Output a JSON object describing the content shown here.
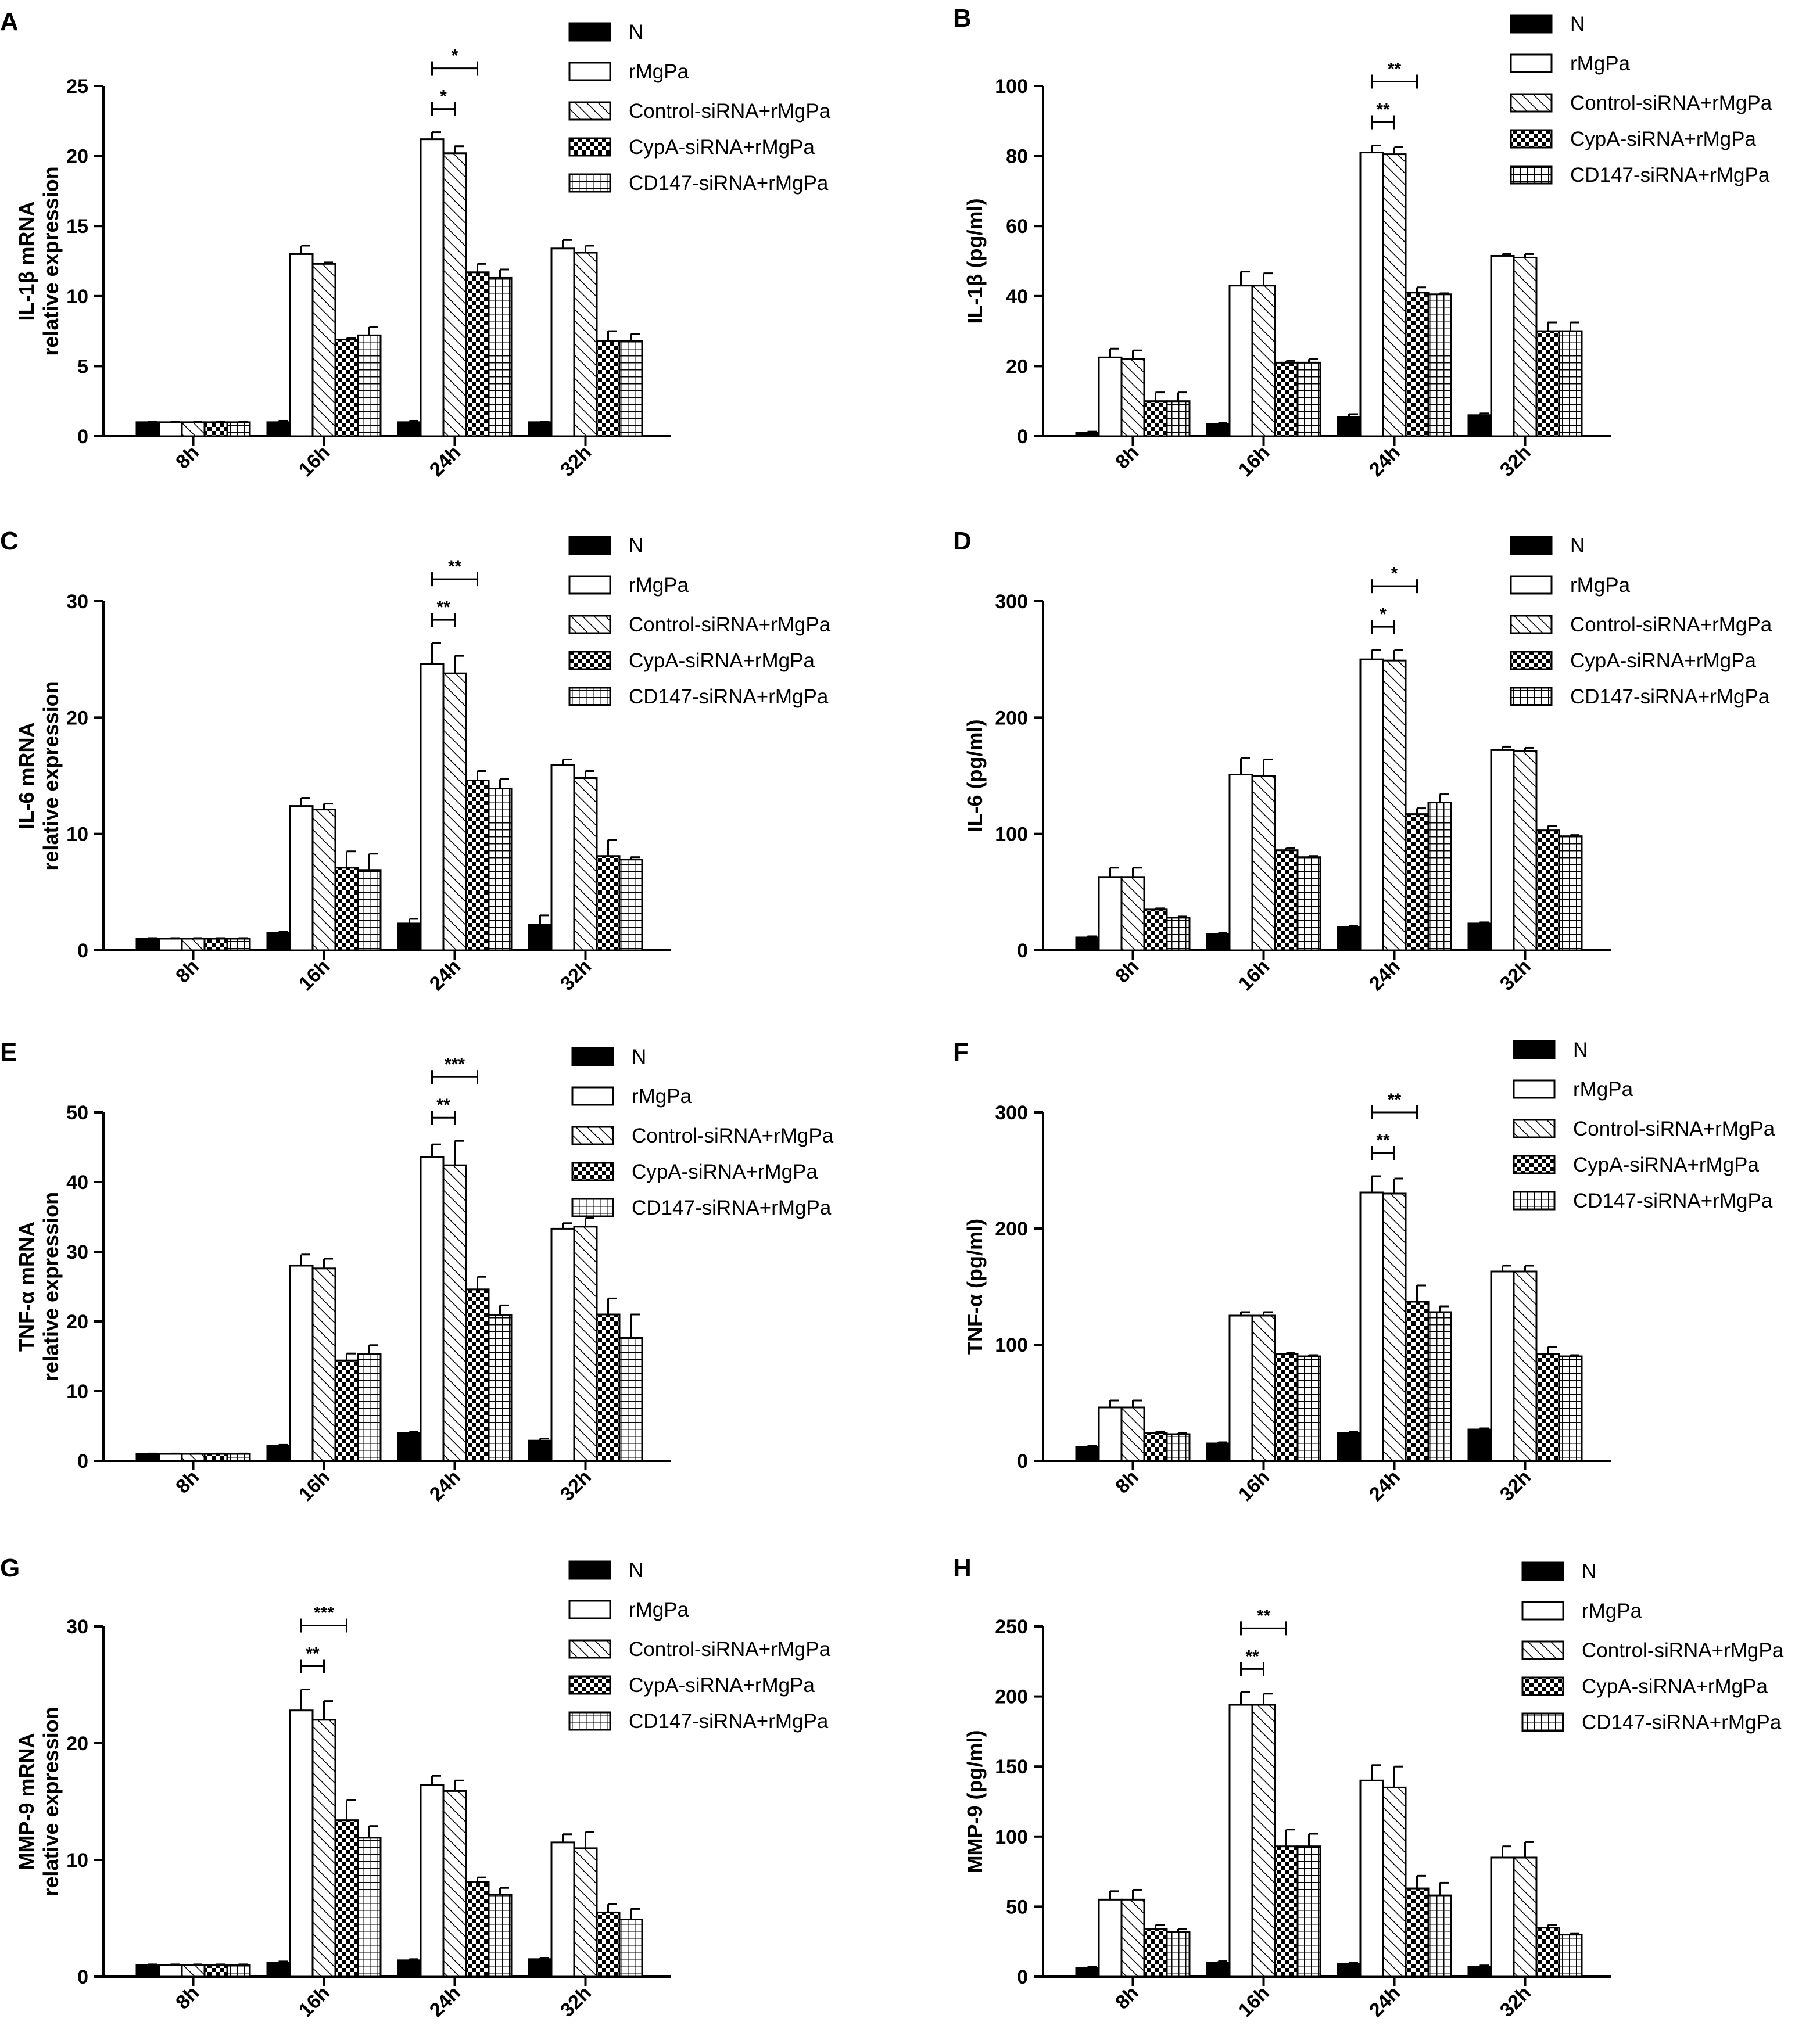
{
  "legend_labels": [
    "N",
    "rMgPa",
    "Control-siRNA+rMgPa",
    "CypA-siRNA+rMgPa",
    "CD147-siRNA+rMgPa"
  ],
  "chart_data": [
    {
      "panel": "A",
      "type": "bar",
      "categories": [
        "8h",
        "16h",
        "24h",
        "32h"
      ],
      "ylabel": [
        "IL-1β mRNA",
        "relative expression"
      ],
      "ylim": [
        0,
        25
      ],
      "yticks": [
        0,
        5,
        10,
        15,
        20,
        25
      ],
      "series": [
        {
          "name": "N",
          "values": [
            1.0,
            1.0,
            1.0,
            1.0
          ],
          "errors": [
            0.05,
            0.1,
            0.1,
            0.05
          ]
        },
        {
          "name": "rMgPa",
          "values": [
            1.0,
            13.0,
            21.2,
            13.4
          ],
          "errors": [
            0.05,
            0.6,
            0.5,
            0.6
          ]
        },
        {
          "name": "Control-siRNA+rMgPa",
          "values": [
            1.0,
            12.3,
            20.2,
            13.1
          ],
          "errors": [
            0.05,
            0.1,
            0.5,
            0.5
          ]
        },
        {
          "name": "CypA-siRNA+rMgPa",
          "values": [
            1.0,
            6.9,
            11.7,
            6.8
          ],
          "errors": [
            0.05,
            0.1,
            0.6,
            0.7
          ]
        },
        {
          "name": "CD147-siRNA+rMgPa",
          "values": [
            1.0,
            7.2,
            11.3,
            6.8
          ],
          "errors": [
            0.05,
            0.6,
            0.6,
            0.5
          ]
        }
      ],
      "significance": [
        {
          "group": 2,
          "from": 1,
          "to": 2,
          "label": "*"
        },
        {
          "group": 2,
          "from": 1,
          "to": 3,
          "label": "*"
        }
      ]
    },
    {
      "panel": "B",
      "type": "bar",
      "categories": [
        "8h",
        "16h",
        "24h",
        "32h"
      ],
      "ylabel": [
        "IL-1β (pg/ml)"
      ],
      "ylim": [
        0,
        100
      ],
      "yticks": [
        0,
        20,
        40,
        60,
        80,
        100
      ],
      "series": [
        {
          "name": "N",
          "values": [
            1.0,
            3.5,
            5.5,
            6.0
          ],
          "errors": [
            0.3,
            0.3,
            0.8,
            0.5
          ]
        },
        {
          "name": "rMgPa",
          "values": [
            22.5,
            43.0,
            81.0,
            51.5
          ],
          "errors": [
            2.5,
            4.0,
            2.0,
            0.5
          ]
        },
        {
          "name": "Control-siRNA+rMgPa",
          "values": [
            22.0,
            43.0,
            80.5,
            51.0
          ],
          "errors": [
            2.5,
            3.5,
            2.0,
            1.0
          ]
        },
        {
          "name": "CypA-siRNA+rMgPa",
          "values": [
            10.0,
            21.0,
            41.0,
            30.0
          ],
          "errors": [
            2.5,
            0.5,
            1.5,
            2.5
          ]
        },
        {
          "name": "CD147-siRNA+rMgPa",
          "values": [
            10.0,
            21.0,
            40.5,
            30.0
          ],
          "errors": [
            2.5,
            1.0,
            0.3,
            2.5
          ]
        }
      ],
      "significance": [
        {
          "group": 2,
          "from": 1,
          "to": 2,
          "label": "**"
        },
        {
          "group": 2,
          "from": 1,
          "to": 3,
          "label": "**"
        }
      ]
    },
    {
      "panel": "C",
      "type": "bar",
      "categories": [
        "8h",
        "16h",
        "24h",
        "32h"
      ],
      "ylabel": [
        "IL-6 mRNA",
        "relative expression"
      ],
      "ylim": [
        0,
        30
      ],
      "yticks": [
        0,
        10,
        20,
        30
      ],
      "series": [
        {
          "name": "N",
          "values": [
            1.0,
            1.5,
            2.3,
            2.2
          ],
          "errors": [
            0.05,
            0.1,
            0.4,
            0.8
          ]
        },
        {
          "name": "rMgPa",
          "values": [
            1.0,
            12.4,
            24.6,
            15.9
          ],
          "errors": [
            0.05,
            0.7,
            1.8,
            0.5
          ]
        },
        {
          "name": "Control-siRNA+rMgPa",
          "values": [
            1.0,
            12.1,
            23.8,
            14.8
          ],
          "errors": [
            0.05,
            0.5,
            1.5,
            0.6
          ]
        },
        {
          "name": "CypA-siRNA+rMgPa",
          "values": [
            1.0,
            7.1,
            14.6,
            8.1
          ],
          "errors": [
            0.05,
            1.4,
            0.8,
            1.4
          ]
        },
        {
          "name": "CD147-siRNA+rMgPa",
          "values": [
            1.0,
            6.9,
            13.9,
            7.8
          ],
          "errors": [
            0.05,
            1.4,
            0.8,
            0.2
          ]
        }
      ],
      "significance": [
        {
          "group": 2,
          "from": 1,
          "to": 2,
          "label": "**"
        },
        {
          "group": 2,
          "from": 1,
          "to": 3,
          "label": "**"
        }
      ]
    },
    {
      "panel": "D",
      "type": "bar",
      "categories": [
        "8h",
        "16h",
        "24h",
        "32h"
      ],
      "ylabel": [
        "IL-6 (pg/ml)"
      ],
      "ylim": [
        0,
        300
      ],
      "yticks": [
        0,
        100,
        200,
        300
      ],
      "series": [
        {
          "name": "N",
          "values": [
            11,
            14,
            20,
            23
          ],
          "errors": [
            1,
            1,
            1,
            1
          ]
        },
        {
          "name": "rMgPa",
          "values": [
            63,
            151,
            250,
            172
          ],
          "errors": [
            8,
            14,
            8,
            3
          ]
        },
        {
          "name": "Control-siRNA+rMgPa",
          "values": [
            63,
            150,
            249,
            171
          ],
          "errors": [
            8,
            14,
            9,
            3
          ]
        },
        {
          "name": "CypA-siRNA+rMgPa",
          "values": [
            35,
            86,
            117,
            103
          ],
          "errors": [
            1,
            2,
            5,
            4
          ]
        },
        {
          "name": "CD147-siRNA+rMgPa",
          "values": [
            28,
            80,
            127,
            98
          ],
          "errors": [
            1,
            1,
            7,
            1
          ]
        }
      ],
      "significance": [
        {
          "group": 2,
          "from": 1,
          "to": 2,
          "label": "*"
        },
        {
          "group": 2,
          "from": 1,
          "to": 3,
          "label": "*"
        }
      ]
    },
    {
      "panel": "E",
      "type": "bar",
      "categories": [
        "8h",
        "16h",
        "24h",
        "32h"
      ],
      "ylabel": [
        "TNF-α mRNA",
        "relative expression"
      ],
      "ylim": [
        0,
        50
      ],
      "yticks": [
        0,
        10,
        20,
        30,
        40,
        50
      ],
      "series": [
        {
          "name": "N",
          "values": [
            1.0,
            2.2,
            4.0,
            2.9
          ],
          "errors": [
            0.05,
            0.1,
            0.2,
            0.3
          ]
        },
        {
          "name": "rMgPa",
          "values": [
            1.0,
            28.0,
            43.6,
            33.3
          ],
          "errors": [
            0.05,
            1.6,
            1.8,
            0.8
          ]
        },
        {
          "name": "Control-siRNA+rMgPa",
          "values": [
            1.0,
            27.6,
            42.4,
            33.6
          ],
          "errors": [
            0.05,
            1.4,
            3.5,
            1.2
          ]
        },
        {
          "name": "CypA-siRNA+rMgPa",
          "values": [
            1.0,
            14.4,
            24.6,
            21.0
          ],
          "errors": [
            0.05,
            1.0,
            1.8,
            2.3
          ]
        },
        {
          "name": "CD147-siRNA+rMgPa",
          "values": [
            1.0,
            15.3,
            20.9,
            17.7
          ],
          "errors": [
            0.05,
            1.3,
            1.4,
            3.3
          ]
        }
      ],
      "significance": [
        {
          "group": 2,
          "from": 1,
          "to": 2,
          "label": "**"
        },
        {
          "group": 2,
          "from": 1,
          "to": 3,
          "label": "***"
        }
      ]
    },
    {
      "panel": "F",
      "type": "bar",
      "categories": [
        "8h",
        "16h",
        "24h",
        "32h"
      ],
      "ylabel": [
        "TNF-α (pg/ml)"
      ],
      "ylim": [
        0,
        300
      ],
      "yticks": [
        0,
        100,
        200,
        300
      ],
      "series": [
        {
          "name": "N",
          "values": [
            12,
            15,
            24,
            27
          ],
          "errors": [
            1,
            1,
            1,
            1
          ]
        },
        {
          "name": "rMgPa",
          "values": [
            46,
            125,
            231,
            163
          ],
          "errors": [
            6,
            3,
            14,
            5
          ]
        },
        {
          "name": "Control-siRNA+rMgPa",
          "values": [
            46,
            125,
            230,
            163
          ],
          "errors": [
            6,
            3,
            13,
            5
          ]
        },
        {
          "name": "CypA-siRNA+rMgPa",
          "values": [
            24,
            92,
            137,
            92
          ],
          "errors": [
            1,
            1,
            14,
            6
          ]
        },
        {
          "name": "CD147-siRNA+rMgPa",
          "values": [
            23,
            90,
            128,
            90
          ],
          "errors": [
            1,
            1,
            5,
            1
          ]
        }
      ],
      "significance": [
        {
          "group": 2,
          "from": 1,
          "to": 2,
          "label": "**"
        },
        {
          "group": 2,
          "from": 1,
          "to": 3,
          "label": "**"
        }
      ]
    },
    {
      "panel": "G",
      "type": "bar",
      "categories": [
        "8h",
        "16h",
        "24h",
        "32h"
      ],
      "ylabel": [
        "MMP-9 mRNA",
        "relative expression"
      ],
      "ylim": [
        0,
        30
      ],
      "yticks": [
        0,
        10,
        20,
        30
      ],
      "series": [
        {
          "name": "N",
          "values": [
            1.0,
            1.2,
            1.4,
            1.5
          ],
          "errors": [
            0.05,
            0.1,
            0.1,
            0.1
          ]
        },
        {
          "name": "rMgPa",
          "values": [
            1.0,
            22.8,
            16.4,
            11.5
          ],
          "errors": [
            0.05,
            1.8,
            0.8,
            0.7
          ]
        },
        {
          "name": "Control-siRNA+rMgPa",
          "values": [
            1.0,
            22.0,
            15.9,
            11.0
          ],
          "errors": [
            0.05,
            1.6,
            0.9,
            1.4
          ]
        },
        {
          "name": "CypA-siRNA+rMgPa",
          "values": [
            1.0,
            13.4,
            8.1,
            5.5
          ],
          "errors": [
            0.05,
            1.7,
            0.4,
            0.7
          ]
        },
        {
          "name": "CD147-siRNA+rMgPa",
          "values": [
            1.0,
            11.9,
            7.0,
            4.9
          ],
          "errors": [
            0.05,
            1.0,
            0.6,
            0.9
          ]
        }
      ],
      "significance": [
        {
          "group": 1,
          "from": 1,
          "to": 2,
          "label": "**"
        },
        {
          "group": 1,
          "from": 1,
          "to": 3,
          "label": "***"
        }
      ]
    },
    {
      "panel": "H",
      "type": "bar",
      "categories": [
        "8h",
        "16h",
        "24h",
        "32h"
      ],
      "ylabel": [
        "MMP-9 (pg/ml)"
      ],
      "ylim": [
        0,
        250
      ],
      "yticks": [
        0,
        50,
        100,
        150,
        200,
        250
      ],
      "series": [
        {
          "name": "N",
          "values": [
            6,
            10,
            9,
            7
          ],
          "errors": [
            1,
            1,
            1,
            1
          ]
        },
        {
          "name": "rMgPa",
          "values": [
            55,
            194,
            140,
            85
          ],
          "errors": [
            6,
            9,
            11,
            8
          ]
        },
        {
          "name": "Control-siRNA+rMgPa",
          "values": [
            55,
            194,
            135,
            85
          ],
          "errors": [
            7,
            8,
            15,
            11
          ]
        },
        {
          "name": "CypA-siRNA+rMgPa",
          "values": [
            34,
            93,
            63,
            35
          ],
          "errors": [
            3,
            12,
            9,
            2
          ]
        },
        {
          "name": "CD147-siRNA+rMgPa",
          "values": [
            32,
            93,
            58,
            30
          ],
          "errors": [
            2,
            9,
            9,
            1
          ]
        }
      ],
      "significance": [
        {
          "group": 1,
          "from": 1,
          "to": 2,
          "label": "**"
        },
        {
          "group": 1,
          "from": 1,
          "to": 3,
          "label": "**"
        }
      ]
    }
  ]
}
